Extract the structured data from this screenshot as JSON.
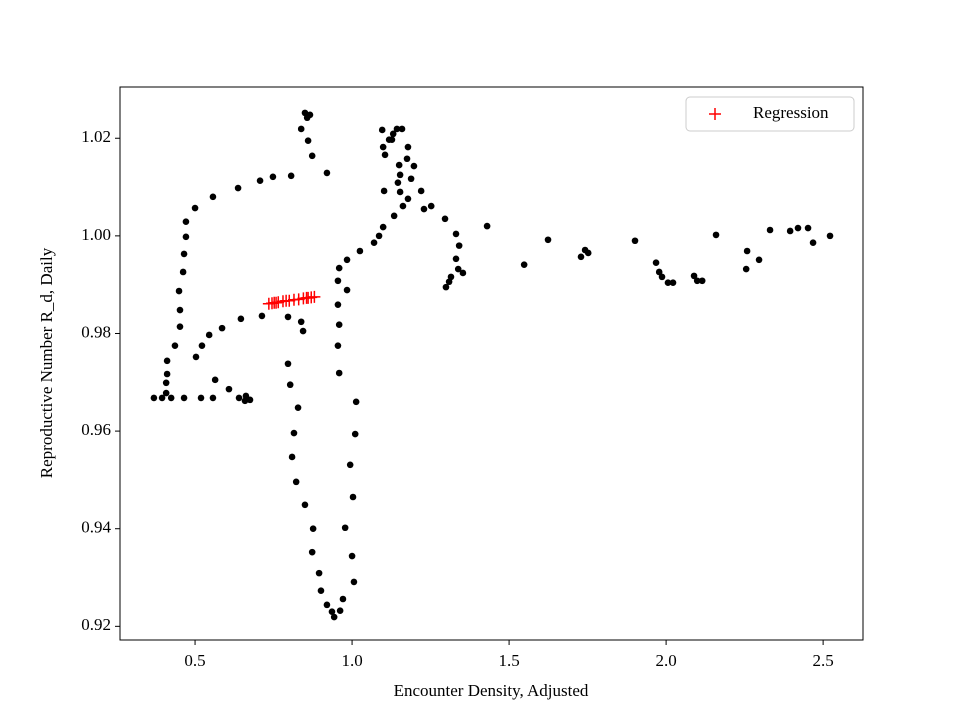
{
  "chart_data": {
    "type": "scatter",
    "xlabel": "Encounter Density, Adjusted",
    "ylabel": "Reproductive Number R_d, Daily",
    "xlim": [
      0.261,
      2.627
    ],
    "ylim": [
      0.9172,
      1.0305
    ],
    "xticks": [
      0.5,
      {
        "value": 1,
        "label": "1.0"
      },
      1.5,
      {
        "value": 2,
        "label": "2.0"
      },
      2.5
    ],
    "yticks": [
      0.92,
      0.94,
      0.96,
      0.98,
      {
        "value": 1,
        "label": "1.00"
      },
      1.02
    ],
    "legend": "upper right",
    "series": [
      {
        "color": "#000000",
        "marker": "circle",
        "x": [
          0.369,
          0.395,
          0.408,
          0.408,
          0.411,
          0.411,
          0.436,
          0.452,
          0.452,
          0.449,
          0.462,
          0.465,
          0.471,
          0.471,
          0.5,
          0.557,
          0.637,
          0.707,
          0.748,
          0.806,
          0.85,
          0.857,
          0.866,
          0.838,
          0.86,
          0.873,
          0.92,
          0.424,
          0.465,
          0.519,
          0.557,
          0.503,
          0.522,
          0.545,
          0.586,
          0.646,
          0.713,
          0.564,
          0.608,
          0.64,
          0.662,
          0.675,
          0.659,
          0.796,
          0.838,
          0.844,
          0.796,
          0.803,
          0.828,
          0.815,
          0.809,
          0.822,
          0.85,
          0.876,
          0.873,
          0.895,
          0.901,
          0.92,
          0.936,
          0.943,
          0.962,
          0.971,
          1.006,
          1.0,
          1.003,
          0.994,
          0.978,
          1.01,
          1.013,
          0.959,
          0.955,
          0.959,
          0.955,
          0.955,
          0.959,
          0.984,
          0.984,
          1.025,
          1.07,
          1.086,
          1.099,
          1.134,
          1.162,
          1.178,
          1.153,
          1.146,
          1.102,
          1.099,
          1.105,
          1.118,
          1.131,
          1.143,
          1.159,
          1.096,
          1.127,
          1.15,
          1.153,
          1.178,
          1.175,
          1.197,
          1.188,
          1.22,
          1.229,
          1.252,
          1.296,
          1.331,
          1.341,
          1.331,
          1.338,
          1.353,
          1.315,
          1.309,
          1.299,
          1.43,
          1.548,
          1.624,
          1.729,
          1.742,
          1.752,
          1.901,
          1.968,
          1.978,
          1.987,
          2.006,
          2.022,
          2.089,
          2.099,
          2.115,
          2.159,
          2.255,
          2.258,
          2.296,
          2.331,
          2.395,
          2.42,
          2.452,
          2.468,
          2.522
        ],
        "y": [
          0.9668,
          0.9668,
          0.9678,
          0.9699,
          0.9717,
          0.9744,
          0.9775,
          0.9814,
          0.9848,
          0.9887,
          0.9926,
          0.9963,
          0.9998,
          1.0029,
          1.0057,
          1.008,
          1.0098,
          1.0113,
          1.0121,
          1.0123,
          1.0252,
          1.0242,
          1.0248,
          1.0219,
          1.0195,
          1.0164,
          1.0129,
          0.9668,
          0.9668,
          0.9668,
          0.9668,
          0.9752,
          0.9775,
          0.9797,
          0.9811,
          0.983,
          0.9836,
          0.9705,
          0.9686,
          0.9668,
          0.9672,
          0.9664,
          0.9662,
          0.9834,
          0.9824,
          0.9805,
          0.9738,
          0.9695,
          0.9648,
          0.9596,
          0.9547,
          0.9496,
          0.9449,
          0.94,
          0.9352,
          0.9309,
          0.9273,
          0.9244,
          0.923,
          0.9219,
          0.9232,
          0.9256,
          0.9291,
          0.9344,
          0.9465,
          0.9531,
          0.9402,
          0.9594,
          0.966,
          0.9719,
          0.9775,
          0.9818,
          0.9859,
          0.9908,
          0.9934,
          0.9889,
          0.9951,
          0.9969,
          0.9986,
          1.0,
          1.0018,
          1.0041,
          1.0061,
          1.0076,
          1.009,
          1.0109,
          1.0092,
          1.0182,
          1.0166,
          1.0197,
          1.0209,
          1.0219,
          1.0219,
          1.0217,
          1.0197,
          1.0145,
          1.0125,
          1.0182,
          1.0158,
          1.0143,
          1.0117,
          1.0092,
          1.0055,
          1.0061,
          1.0035,
          1.0004,
          0.998,
          0.9953,
          0.9932,
          0.9924,
          0.9916,
          0.9906,
          0.9895,
          1.002,
          0.9941,
          0.9992,
          0.9957,
          0.9971,
          0.9965,
          0.999,
          0.9945,
          0.9926,
          0.9916,
          0.9904,
          0.9904,
          0.9918,
          0.9908,
          0.9908,
          1.0002,
          0.9932,
          0.9969,
          0.9951,
          1.0012,
          1.001,
          1.0016,
          1.0016,
          0.9986,
          1.0
        ]
      },
      {
        "name": "Regression",
        "color": "#ff0000",
        "marker": "plus",
        "x": [
          0.735,
          0.745,
          0.752,
          0.758,
          0.765,
          0.78,
          0.79,
          0.8,
          0.815,
          0.83,
          0.845,
          0.855,
          0.86,
          0.87,
          0.88
        ],
        "y": [
          0.9861,
          0.9862,
          0.9863,
          0.9863,
          0.9864,
          0.9866,
          0.9867,
          0.9867,
          0.9869,
          0.987,
          0.9872,
          0.9873,
          0.9873,
          0.9874,
          0.9875
        ]
      }
    ]
  }
}
